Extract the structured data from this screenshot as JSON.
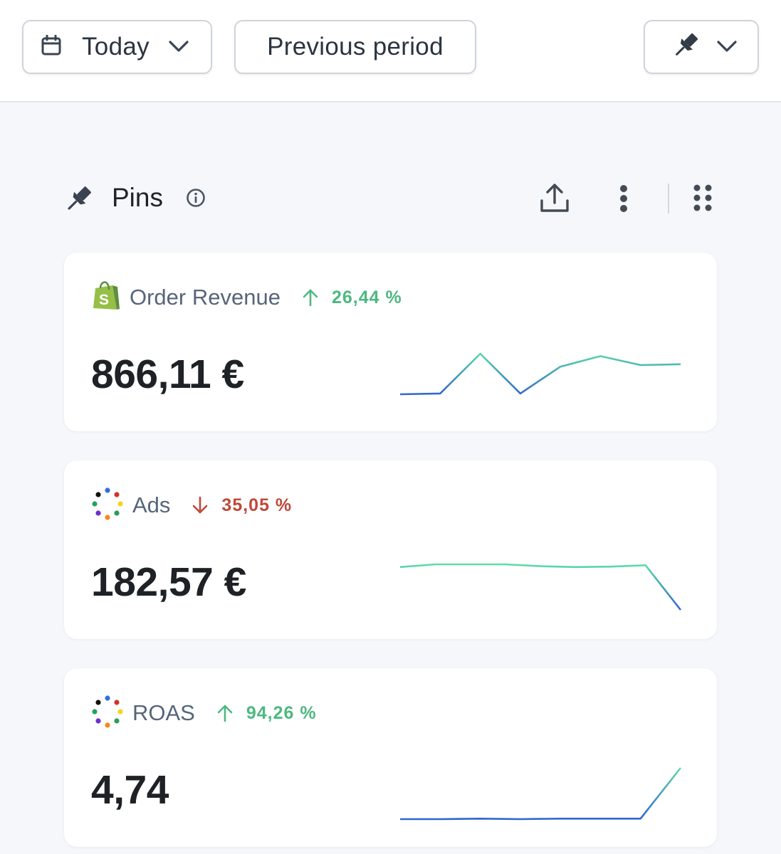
{
  "toolbar": {
    "date_range": {
      "label": "Today",
      "icon": "calendar-icon"
    },
    "compare_label": "Previous period",
    "pin_menu": {
      "icon": "pin-icon"
    }
  },
  "section": {
    "title": "Pins",
    "icons": [
      "pin-icon",
      "info-icon",
      "share-icon",
      "more-vertical-icon",
      "grid-drag-icon"
    ]
  },
  "colors": {
    "positive": "#4eb880",
    "negative": "#c0483a",
    "spark_start": "#2f62d0",
    "spark_end": "#5fe0a6",
    "shopify_green": "#95bf47"
  },
  "cards": [
    {
      "name": "Order Revenue",
      "source_icon": "shopify-icon",
      "change_direction": "up",
      "change": "26,44 %",
      "value": "866,11 €",
      "trend": [
        0.0,
        0.02,
        1.0,
        0.02,
        0.68,
        0.94,
        0.72,
        0.74
      ]
    },
    {
      "name": "Ads",
      "source_icon": "dots-ring-icon",
      "change_direction": "down",
      "change": "35,05 %",
      "value": "182,57 €",
      "trend": [
        0.94,
        1.0,
        1.0,
        1.0,
        0.96,
        0.94,
        0.95,
        0.98,
        0.0
      ]
    },
    {
      "name": "ROAS",
      "source_icon": "dots-ring-icon",
      "change_direction": "up",
      "change": "94,26 %",
      "value": "4,74",
      "trend": [
        0.0,
        0.0,
        0.01,
        0.0,
        0.01,
        0.01,
        0.01,
        1.0
      ]
    }
  ]
}
